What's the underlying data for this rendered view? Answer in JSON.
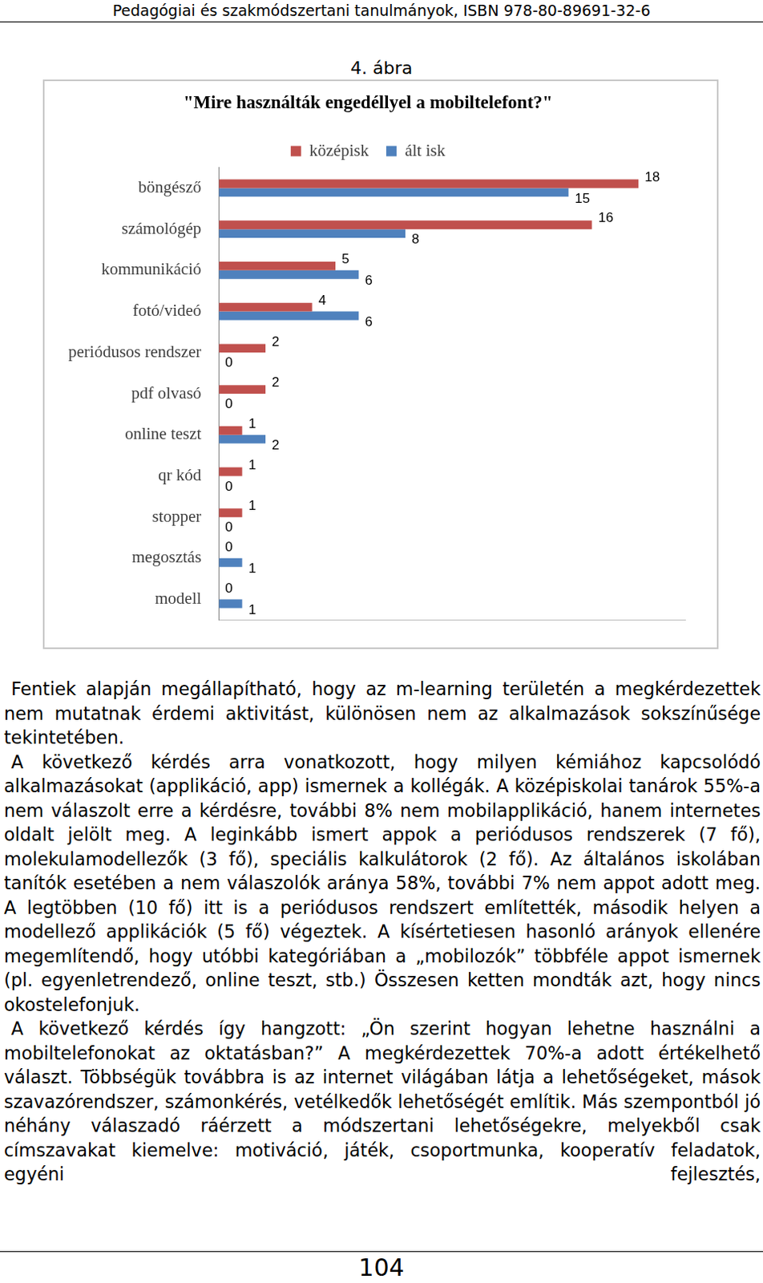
{
  "header": "Pedagógiai és szakmódszertani tanulmányok, ISBN 978-80-89691-32-6",
  "figure_caption": "4. ábra",
  "chart_data": {
    "type": "bar",
    "title": "\"Mire használták engedéllyel a mobiltelefont?\"",
    "orientation": "horizontal",
    "categories": [
      "böngésző",
      "számológép",
      "kommunikáció",
      "fotó/videó",
      "periódusos rendszer",
      "pdf olvasó",
      "online teszt",
      "qr kód",
      "stopper",
      "megosztás",
      "modell"
    ],
    "series": [
      {
        "name": "középisk",
        "color": "#c0504d",
        "values": [
          18,
          16,
          5,
          4,
          2,
          2,
          1,
          1,
          1,
          0,
          0
        ]
      },
      {
        "name": "ált isk",
        "color": "#4f81bd",
        "values": [
          15,
          8,
          6,
          6,
          0,
          0,
          2,
          0,
          0,
          1,
          1
        ]
      }
    ],
    "xlim": [
      0,
      20
    ],
    "grid": false,
    "legend": "top",
    "data_labels": true,
    "tick_labels": "y"
  },
  "paragraphs": [
    "Fentiek alapján megállapítható, hogy az m-learning területén a megkérdezettek nem mutatnak érdemi aktivitást, különösen nem az alkalmazások sokszínűsége tekintetében.",
    "A következő kérdés arra vonatkozott, hogy milyen kémiához kapcsolódó alkalmazásokat (applikáció, app) ismernek a kollégák. A középiskolai tanárok 55%-a nem válaszolt erre a kérdésre, további 8% nem mobilapplikáció, hanem internetes oldalt jelölt meg. A leginkább ismert appok a periódusos rendszerek (7 fő), molekulamodellezők (3 fő), speciális kalkulátorok (2 fő). Az általános iskolában tanítók esetében a nem válaszolók aránya 58%, további 7% nem appot adott meg. A legtöbben (10 fő) itt is a periódusos rendszert említették, második helyen a modellező applikációk (5 fő) végeztek. A kísértetiesen hasonló arányok ellenére megemlítendő, hogy utóbbi kategóriában a „mobilozók” többféle appot ismernek (pl. egyenletrendező, online teszt, stb.) Összesen ketten mondták azt, hogy nincs okostelefonjuk.",
    "A következő kérdés így hangzott: „Ön szerint hogyan lehetne használni a mobiltelefonokat az oktatásban?” A megkérdezettek 70%-a adott értékelhető választ. Többségük továbbra is az internet világában látja a lehetőségeket, mások szavazórendszer, számonkérés, vetélkedők lehetőségét említik. Más szempontból jó néhány válaszadó ráérzett a módszertani lehetőségekre, melyekből csak címszavakat kiemelve: motiváció, játék, csoportmunka, kooperatív feladatok, egyéni fejlesztés,"
  ],
  "page_number": "104"
}
